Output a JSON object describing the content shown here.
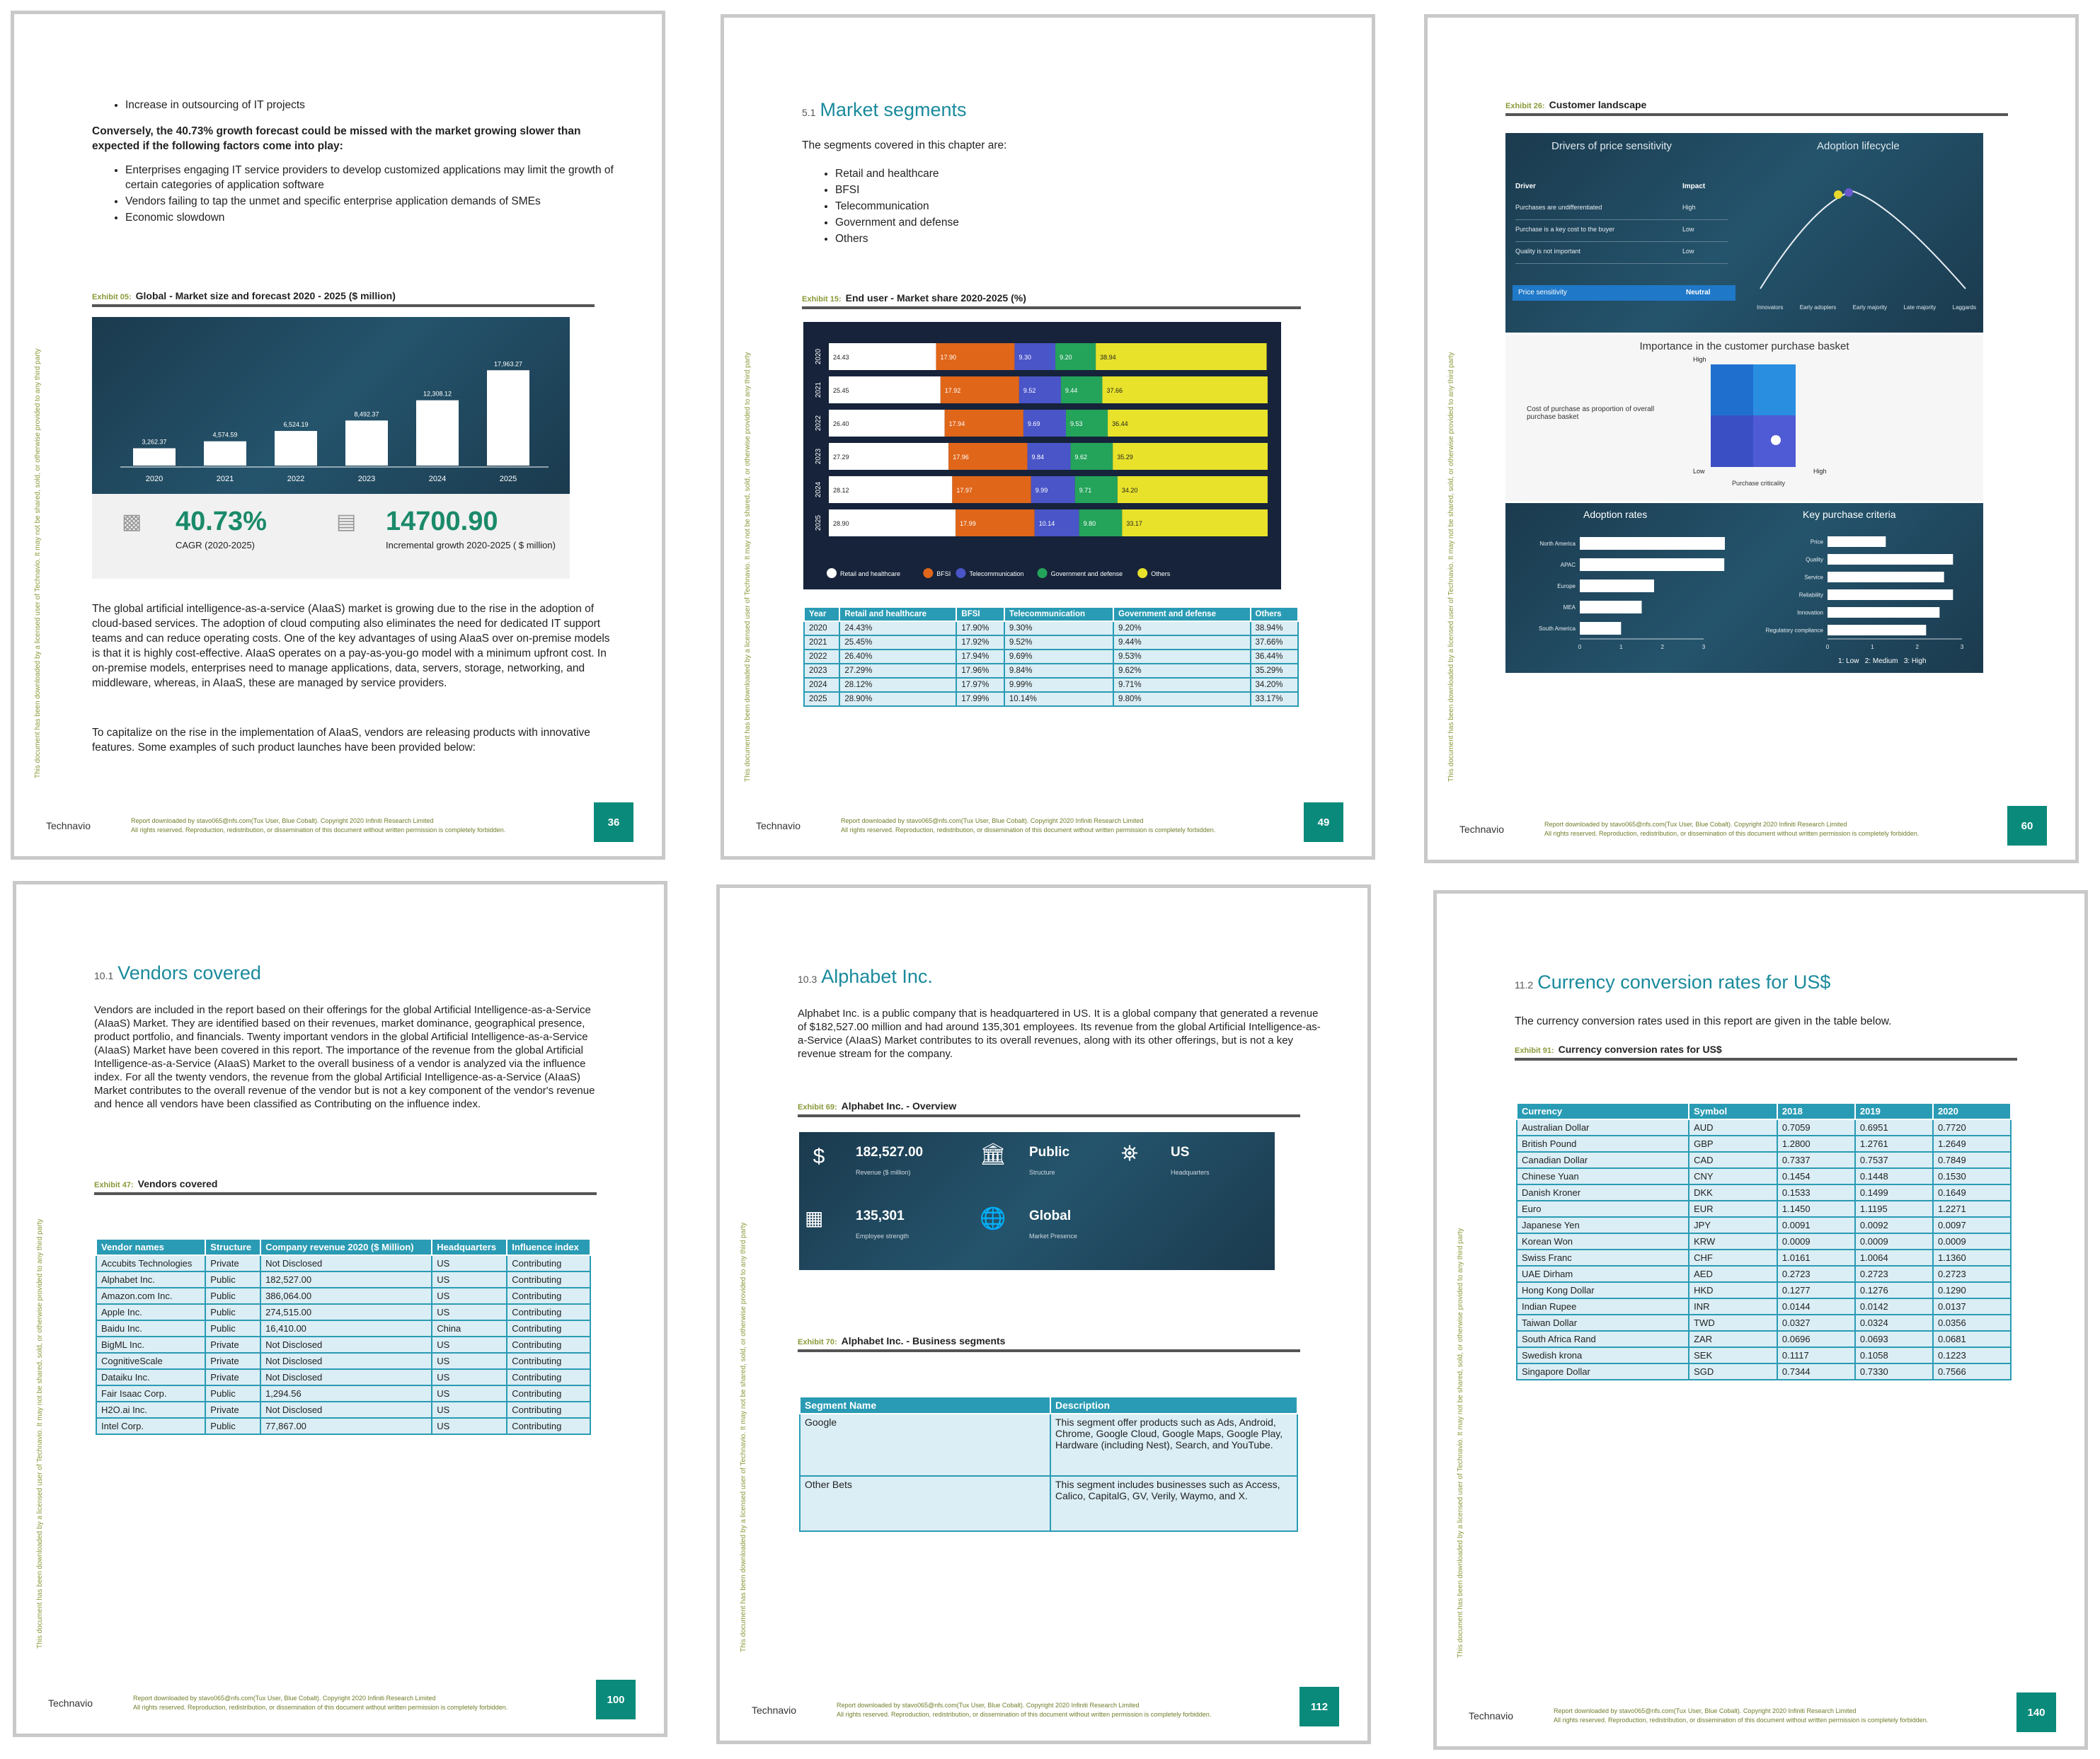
{
  "footer": {
    "logo": "Technavio",
    "line1": "Report downloaded by stavo065@nfs.com(Tux User, Blue Cobalt). Copyright 2020 Infiniti Research Limited",
    "line2": "All rights reserved. Reproduction, redistribution, or dissemination of this document without written permission is completely forbidden.",
    "side": "This document has been downloaded by a licensed user of Technavio. It may not be shared, sold, or otherwise provided to any third party"
  },
  "p1": {
    "page_num": "36",
    "top_bullet": "Increase in outsourcing of IT projects",
    "conversely": "Conversely, the 40.73% growth forecast could be missed with the market growing slower than expected if the following factors come into play:",
    "bullets": [
      "Enterprises engaging IT service providers to develop customized applications may limit the growth of certain categories of application software",
      "Vendors failing to tap the unmet and specific enterprise application demands of SMEs",
      "Economic slowdown"
    ],
    "exhibit_label": "Exhibit 05:",
    "exhibit_title": "Global - Market size and forecast 2020 - 2025 ($ million)",
    "cagr_value": "40.73%",
    "cagr_label": "CAGR (2020-2025)",
    "growth_value": "14700.90",
    "growth_label": "Incremental growth 2020-2025 ( $ million)",
    "para1": "The global artificial intelligence-as-a-service (AIaaS) market is growing due to the rise in the adoption of cloud-based services. The adoption of cloud computing also eliminates the need for dedicated IT support teams and can reduce operating costs. One of the key advantages of using AIaaS over on-premise models is that it is highly cost-effective. AIaaS operates on a pay-as-you-go model with a minimum upfront cost. In on-premise models, enterprises need to manage applications, data, servers, storage, networking, and middleware, whereas, in AIaaS, these are managed by service providers.",
    "para2": "To capitalize on the rise in the implementation of AIaaS, vendors are releasing products with innovative features. Some examples of such product launches have been provided below:"
  },
  "chart_data": [
    {
      "type": "bar",
      "categories": [
        "2020",
        "2021",
        "2022",
        "2023",
        "2024",
        "2025"
      ],
      "values": [
        3262.37,
        4574.59,
        6524.19,
        8492.37,
        12308.12,
        17963.27
      ],
      "value_labels": [
        "3,262.37",
        "4,574.59",
        "6,524.19",
        "8,492.37",
        "12,308.12",
        "17,963.27"
      ],
      "title": "Global - Market size and forecast 2020 - 2025 ($ million)",
      "ylim": [
        0,
        20000
      ]
    },
    {
      "type": "bar",
      "orientation": "horizontal-stacked",
      "title": "End user - Market share 2020-2025 (%)",
      "categories": [
        "2020",
        "2021",
        "2022",
        "2023",
        "2024",
        "2025"
      ],
      "series": [
        {
          "name": "Retail and healthcare",
          "color": "#ffffff",
          "values": [
            24.43,
            25.45,
            26.4,
            27.29,
            28.12,
            28.9
          ]
        },
        {
          "name": "BFSI",
          "color": "#e0661a",
          "values": [
            17.9,
            17.92,
            17.94,
            17.96,
            17.97,
            17.99
          ]
        },
        {
          "name": "Telecommunication",
          "color": "#4a55c8",
          "values": [
            9.3,
            9.52,
            9.69,
            9.84,
            9.99,
            10.14
          ]
        },
        {
          "name": "Government and defense",
          "color": "#24a35a",
          "values": [
            9.2,
            9.44,
            9.53,
            9.62,
            9.71,
            9.8
          ]
        },
        {
          "name": "Others",
          "color": "#e8e22a",
          "values": [
            38.94,
            37.66,
            36.44,
            35.29,
            34.2,
            33.17
          ]
        }
      ]
    }
  ],
  "p2": {
    "page_num": "49",
    "sec_num": "5.1",
    "title": "Market segments",
    "intro": "The segments covered in this chapter are:",
    "segments": [
      "Retail and healthcare",
      "BFSI",
      "Telecommunication",
      "Government and defense",
      "Others"
    ],
    "exhibit_label": "Exhibit 15:",
    "exhibit_title": "End user - Market share 2020-2025 (%)",
    "table_headers": [
      "Year",
      "Retail and healthcare",
      "BFSI",
      "Telecommunication",
      "Government and defense",
      "Others"
    ],
    "table_rows": [
      [
        "2020",
        "24.43%",
        "17.90%",
        "9.30%",
        "9.20%",
        "38.94%"
      ],
      [
        "2021",
        "25.45%",
        "17.92%",
        "9.52%",
        "9.44%",
        "37.66%"
      ],
      [
        "2022",
        "26.40%",
        "17.94%",
        "9.69%",
        "9.53%",
        "36.44%"
      ],
      [
        "2023",
        "27.29%",
        "17.96%",
        "9.84%",
        "9.62%",
        "35.29%"
      ],
      [
        "2024",
        "28.12%",
        "17.97%",
        "9.99%",
        "9.71%",
        "34.20%"
      ],
      [
        "2025",
        "28.90%",
        "17.99%",
        "10.14%",
        "9.80%",
        "33.17%"
      ]
    ]
  },
  "p3": {
    "page_num": "60",
    "exhibit_label": "Exhibit 26:",
    "exhibit_title": "Customer landscape",
    "drivers_title": "Drivers of price sensitivity",
    "adoption_title": "Adoption lifecycle",
    "driver_hdr": "Driver",
    "impact_hdr": "Impact",
    "drivers": [
      {
        "name": "Purchases are undifferentiated",
        "impact": "High"
      },
      {
        "name": "Purchase is a key cost to the buyer",
        "impact": "Low"
      },
      {
        "name": "Quality is not important",
        "impact": "Low"
      }
    ],
    "sensitivity_label": "Price sensitivity",
    "sensitivity_value": "Neutral",
    "lifecycle_labels": [
      "Innovators",
      "Early adopters",
      "Early majority",
      "Late majority",
      "Laggards"
    ],
    "basket_title": "Importance in the customer purchase basket",
    "basket_high": "High",
    "basket_low": "Low",
    "basket_high_x": "High",
    "basket_ylabel": "Cost of purchase as proportion of overall purchase basket",
    "basket_xlabel": "Purchase criticality",
    "adoption_rates_title": "Adoption rates",
    "adoption_regions": [
      "North America",
      "APAC",
      "Europe",
      "MEA",
      "South America"
    ],
    "adoption_values": [
      3.8,
      3.5,
      1.8,
      1.5,
      1.0
    ],
    "adoption_ticks": [
      "0",
      "1",
      "2",
      "3"
    ],
    "kpc_title": "Key purchase criteria",
    "kpc_items": [
      "Price",
      "Quality",
      "Service",
      "Reliability",
      "Innovation",
      "Regulatory compliance"
    ],
    "kpc_values": [
      1.3,
      2.8,
      2.6,
      2.8,
      2.5,
      2.2
    ],
    "kpc_ticks": [
      "0",
      "1",
      "2",
      "3"
    ],
    "kpc_legend": "1: Low   2: Medium   3: High"
  },
  "p4": {
    "page_num": "100",
    "sec_num": "10.1",
    "title": "Vendors covered",
    "para": "Vendors are included in the report based on their offerings for the global Artificial Intelligence-as-a-Service (AIaaS) Market. They are identified based on their revenues, market dominance, geographical presence, product portfolio, and financials. Twenty important vendors in the global Artificial Intelligence-as-a-Service (AIaaS) Market have been covered in this report. The importance of the revenue from the global Artificial Intelligence-as-a-Service (AIaaS) Market to the overall business of a vendor is analyzed via the influence index. For all the twenty vendors, the revenue from the global Artificial Intelligence-as-a-Service (AIaaS) Market contributes to the overall revenue of the vendor but is not a key component of the vendor's revenue and hence all vendors have been classified as Contributing on the influence index.",
    "exhibit_label": "Exhibit 47:",
    "exhibit_title": "Vendors covered",
    "table_headers": [
      "Vendor names",
      "Structure",
      "Company revenue 2020 ($ Million)",
      "Headquarters",
      "Influence index"
    ],
    "table_rows": [
      [
        "Accubits Technologies",
        "Private",
        "Not Disclosed",
        "US",
        "Contributing"
      ],
      [
        "Alphabet Inc.",
        "Public",
        "182,527.00",
        "US",
        "Contributing"
      ],
      [
        "Amazon.com Inc.",
        "Public",
        "386,064.00",
        "US",
        "Contributing"
      ],
      [
        "Apple Inc.",
        "Public",
        "274,515.00",
        "US",
        "Contributing"
      ],
      [
        "Baidu Inc.",
        "Public",
        "16,410.00",
        "China",
        "Contributing"
      ],
      [
        "BigML Inc.",
        "Private",
        "Not Disclosed",
        "US",
        "Contributing"
      ],
      [
        "CognitiveScale",
        "Private",
        "Not Disclosed",
        "US",
        "Contributing"
      ],
      [
        "Dataiku Inc.",
        "Private",
        "Not Disclosed",
        "US",
        "Contributing"
      ],
      [
        "Fair Isaac Corp.",
        "Public",
        "1,294.56",
        "US",
        "Contributing"
      ],
      [
        "H2O.ai Inc.",
        "Private",
        "Not Disclosed",
        "US",
        "Contributing"
      ],
      [
        "Intel Corp.",
        "Public",
        "77,867.00",
        "US",
        "Contributing"
      ]
    ]
  },
  "p5": {
    "page_num": "112",
    "sec_num": "10.3",
    "title": "Alphabet Inc.",
    "para": "Alphabet Inc. is a public company that is headquartered in US. It is a global company that generated a revenue of $182,527.00 million and had around 135,301 employees. Its revenue from the global Artificial Intelligence-as-a-Service (AIaaS) Market contributes to its overall revenues, along with its other offerings, but is not a key revenue stream for the company.",
    "exhibit1_label": "Exhibit 69:",
    "exhibit1_title": "Alphabet Inc. - Overview",
    "revenue_value": "182,527.00",
    "revenue_label": "Revenue ($ million)",
    "structure_value": "Public",
    "structure_label": "Structure",
    "hq_value": "US",
    "hq_label": "Headquarters",
    "emp_value": "135,301",
    "emp_label": "Employee strength",
    "presence_value": "Global",
    "presence_label": "Market Presence",
    "exhibit2_label": "Exhibit 70:",
    "exhibit2_title": "Alphabet Inc. - Business segments",
    "seg_headers": [
      "Segment Name",
      "Description"
    ],
    "seg_rows": [
      [
        "Google",
        "This segment offer products such as Ads, Android, Chrome, Google Cloud, Google Maps, Google Play, Hardware (including Nest), Search, and YouTube."
      ],
      [
        "Other Bets",
        "This segment includes businesses such as Access, Calico, CapitalG, GV, Verily, Waymo, and X."
      ]
    ]
  },
  "p6": {
    "page_num": "140",
    "sec_num": "11.2",
    "title": "Currency conversion rates for US$",
    "intro": "The currency conversion rates used in this report are given in the table below.",
    "exhibit_label": "Exhibit 91:",
    "exhibit_title": "Currency conversion rates for US$",
    "table_headers": [
      "Currency",
      "Symbol",
      "2018",
      "2019",
      "2020"
    ],
    "table_rows": [
      [
        "Australian Dollar",
        "AUD",
        "0.7059",
        "0.6951",
        "0.7720"
      ],
      [
        "British Pound",
        "GBP",
        "1.2800",
        "1.2761",
        "1.2649"
      ],
      [
        "Canadian Dollar",
        "CAD",
        "0.7337",
        "0.7537",
        "0.7849"
      ],
      [
        "Chinese Yuan",
        "CNY",
        "0.1454",
        "0.1448",
        "0.1530"
      ],
      [
        "Danish Kroner",
        "DKK",
        "0.1533",
        "0.1499",
        "0.1649"
      ],
      [
        "Euro",
        "EUR",
        "1.1450",
        "1.1195",
        "1.2271"
      ],
      [
        "Japanese Yen",
        "JPY",
        "0.0091",
        "0.0092",
        "0.0097"
      ],
      [
        "Korean Won",
        "KRW",
        "0.0009",
        "0.0009",
        "0.0009"
      ],
      [
        "Swiss Franc",
        "CHF",
        "1.0161",
        "1.0064",
        "1.1360"
      ],
      [
        "UAE Dirham",
        "AED",
        "0.2723",
        "0.2723",
        "0.2723"
      ],
      [
        "Hong Kong Dollar",
        "HKD",
        "0.1277",
        "0.1276",
        "0.1290"
      ],
      [
        "Indian Rupee",
        "INR",
        "0.0144",
        "0.0142",
        "0.0137"
      ],
      [
        "Taiwan Dollar",
        "TWD",
        "0.0327",
        "0.0324",
        "0.0356"
      ],
      [
        "South Africa Rand",
        "ZAR",
        "0.0696",
        "0.0693",
        "0.0681"
      ],
      [
        "Swedish krona",
        "SEK",
        "0.1117",
        "0.1058",
        "0.1223"
      ],
      [
        "Singapore Dollar",
        "SGD",
        "0.7344",
        "0.7330",
        "0.7566"
      ]
    ]
  }
}
